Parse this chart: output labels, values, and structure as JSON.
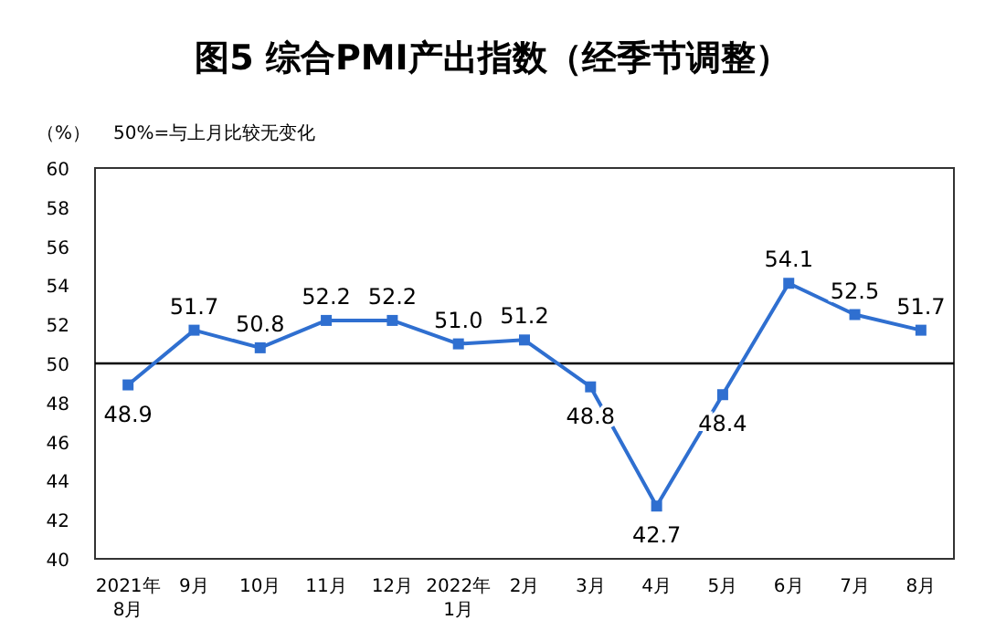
{
  "chart_data": {
    "type": "line",
    "title": "图5 综合PMI产出指数（经季节调整）",
    "ylabel": "（%）",
    "annotations": [
      "50%=与上月比较无变化"
    ],
    "categories": [
      "2021年\n8月",
      "9月",
      "10月",
      "11月",
      "12月",
      "2022年\n1月",
      "2月",
      "3月",
      "4月",
      "5月",
      "6月",
      "7月",
      "8月"
    ],
    "values": [
      48.9,
      51.7,
      50.8,
      52.2,
      52.2,
      51.0,
      51.2,
      48.8,
      42.7,
      48.4,
      54.1,
      52.5,
      51.7
    ],
    "value_labels": [
      "48.9",
      "51.7",
      "50.8",
      "52.2",
      "52.2",
      "51.0",
      "51.2",
      "48.8",
      "42.7",
      "48.4",
      "54.1",
      "52.5",
      "51.7"
    ],
    "color": "#2f6fd0",
    "marker": "square",
    "ylim": [
      40,
      60
    ],
    "yticks": [
      40,
      42,
      44,
      46,
      48,
      50,
      52,
      54,
      56,
      58,
      60
    ],
    "ref_lines": [
      {
        "axis": "y",
        "value": 50,
        "color": "#000000"
      }
    ],
    "grid": false
  }
}
